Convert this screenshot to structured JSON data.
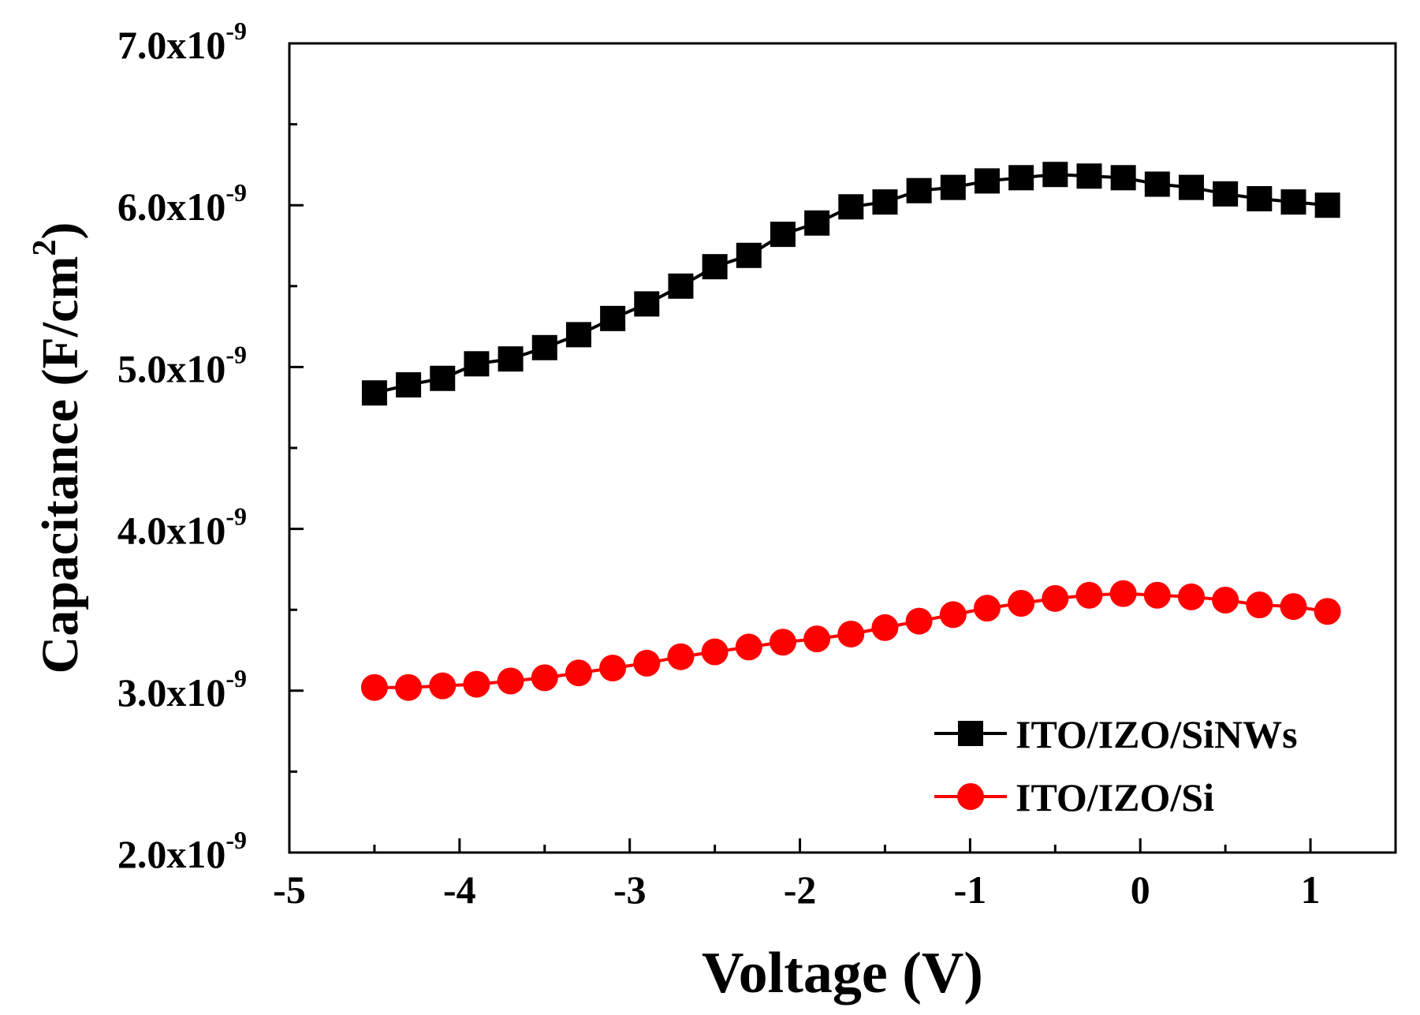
{
  "chart_data": {
    "type": "line",
    "title": "",
    "xlabel": "Voltage (V)",
    "ylabel": "Capacitance (F/cm²)",
    "ylabel_parts": {
      "main": "Capacitance (F/cm",
      "sup": "2",
      "end": ")"
    },
    "xlim": [
      -5,
      1.5
    ],
    "ylim": [
      2e-09,
      7e-09
    ],
    "x_ticks": [
      {
        "value": -5,
        "label": "-5"
      },
      {
        "value": -4,
        "label": "-4"
      },
      {
        "value": -3,
        "label": "-3"
      },
      {
        "value": -2,
        "label": "-2"
      },
      {
        "value": -1,
        "label": "-1"
      },
      {
        "value": 0,
        "label": "0"
      },
      {
        "value": 1,
        "label": "1"
      }
    ],
    "y_ticks": [
      {
        "value": 2e-09,
        "mantissa": "2.0x10",
        "exp": "-9"
      },
      {
        "value": 3e-09,
        "mantissa": "3.0x10",
        "exp": "-9"
      },
      {
        "value": 4e-09,
        "mantissa": "4.0x10",
        "exp": "-9"
      },
      {
        "value": 5e-09,
        "mantissa": "5.0x10",
        "exp": "-9"
      },
      {
        "value": 6e-09,
        "mantissa": "6.0x10",
        "exp": "-9"
      },
      {
        "value": 7e-09,
        "mantissa": "7.0x10",
        "exp": "-9"
      }
    ],
    "legend_position": "bottom-right",
    "series": [
      {
        "name": "ITO/IZO/SiNWs",
        "color": "#000000",
        "marker": "square",
        "x": [
          -4.5,
          -4.3,
          -4.1,
          -3.9,
          -3.7,
          -3.5,
          -3.3,
          -3.1,
          -2.9,
          -2.7,
          -2.5,
          -2.3,
          -2.1,
          -1.9,
          -1.7,
          -1.5,
          -1.3,
          -1.1,
          -0.9,
          -0.7,
          -0.5,
          -0.3,
          -0.1,
          0.1,
          0.3,
          0.5,
          0.7,
          0.9,
          1.1
        ],
        "y": [
          4.84e-09,
          4.89e-09,
          4.93e-09,
          5.02e-09,
          5.05e-09,
          5.12e-09,
          5.2e-09,
          5.3e-09,
          5.39e-09,
          5.5e-09,
          5.62e-09,
          5.69e-09,
          5.82e-09,
          5.89e-09,
          5.99e-09,
          6.02e-09,
          6.09e-09,
          6.11e-09,
          6.15e-09,
          6.17e-09,
          6.19e-09,
          6.18e-09,
          6.17e-09,
          6.13e-09,
          6.11e-09,
          6.07e-09,
          6.04e-09,
          6.02e-09,
          6e-09
        ]
      },
      {
        "name": "ITO/IZO/Si",
        "color": "#ff0000",
        "marker": "circle",
        "x": [
          -4.5,
          -4.3,
          -4.1,
          -3.9,
          -3.7,
          -3.5,
          -3.3,
          -3.1,
          -2.9,
          -2.7,
          -2.5,
          -2.3,
          -2.1,
          -1.9,
          -1.7,
          -1.5,
          -1.3,
          -1.1,
          -0.9,
          -0.7,
          -0.5,
          -0.3,
          -0.1,
          0.1,
          0.3,
          0.5,
          0.7,
          0.9,
          1.1
        ],
        "y": [
          3.02e-09,
          3.02e-09,
          3.03e-09,
          3.04e-09,
          3.06e-09,
          3.08e-09,
          3.11e-09,
          3.14e-09,
          3.17e-09,
          3.21e-09,
          3.24e-09,
          3.27e-09,
          3.3e-09,
          3.32e-09,
          3.35e-09,
          3.39e-09,
          3.43e-09,
          3.47e-09,
          3.51e-09,
          3.54e-09,
          3.57e-09,
          3.59e-09,
          3.6e-09,
          3.59e-09,
          3.58e-09,
          3.56e-09,
          3.53e-09,
          3.52e-09,
          3.49e-09
        ]
      }
    ]
  }
}
